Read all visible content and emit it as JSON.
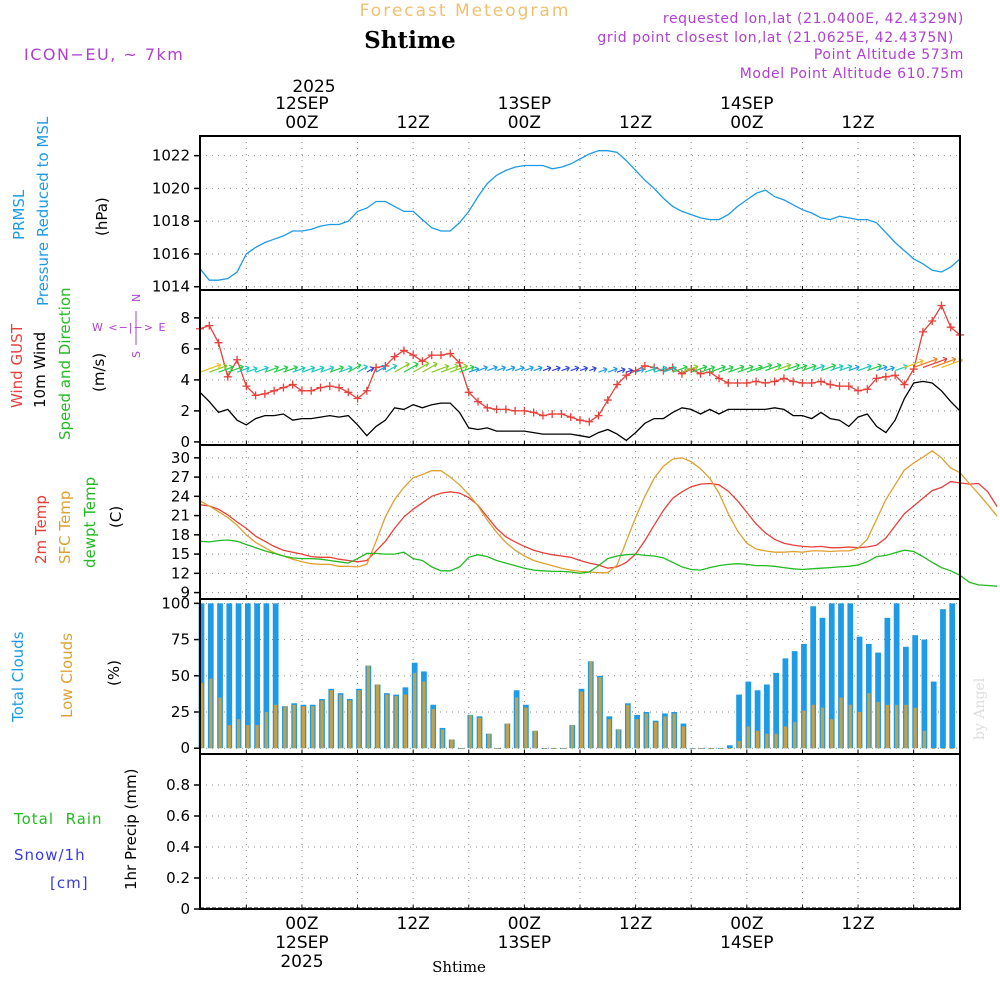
{
  "header": {
    "forecast_title": "Forecast Meteogram",
    "location": "Shtime",
    "model": "ICON−EU, ~ 7km",
    "requested": "requested lon,lat (21.0400E, 42.4329N)",
    "grid_point": "grid point closest lon,lat (21.0625E, 42.4375N)",
    "point_altitude": "Point Altitude 573m",
    "model_altitude": "Model Point Altitude 610.75m",
    "watermark": "by Angel"
  },
  "time_axis": {
    "top_year": "2025",
    "top_labels": [
      {
        "hour": 12,
        "line1": "12SEP",
        "line2": "00Z"
      },
      {
        "hour": 24,
        "line1": "",
        "line2": "12Z"
      },
      {
        "hour": 36,
        "line1": "13SEP",
        "line2": "00Z"
      },
      {
        "hour": 48,
        "line1": "",
        "line2": "12Z"
      },
      {
        "hour": 60,
        "line1": "14SEP",
        "line2": "00Z"
      },
      {
        "hour": 72,
        "line1": "",
        "line2": "12Z"
      }
    ],
    "bottom_labels": [
      {
        "hour": 12,
        "line1": "00Z",
        "line2": "12SEP",
        "line3": "2025"
      },
      {
        "hour": 24,
        "line1": "12Z",
        "line2": "",
        "line3": ""
      },
      {
        "hour": 36,
        "line1": "00Z",
        "line2": "13SEP",
        "line3": ""
      },
      {
        "hour": 48,
        "line1": "12Z",
        "line2": "",
        "line3": ""
      },
      {
        "hour": 60,
        "line1": "00Z",
        "line2": "14SEP",
        "line3": ""
      },
      {
        "hour": 72,
        "line1": "12Z",
        "line2": "",
        "line3": ""
      }
    ],
    "footer_label": "Shtime"
  },
  "panel_labels": {
    "pressure": {
      "line1": "PRMSL",
      "line2": "Pressure Reduced to MSL",
      "unit": "(hPa)"
    },
    "wind": {
      "gust": "Wind GUST",
      "wind10": "10m Wind",
      "dir": "Speed and Direction",
      "unit": "(m/s)",
      "compass_w": "W <−|−> E",
      "compass_n": "N",
      "compass_s": "S"
    },
    "temp": {
      "t2m": "2m Temp",
      "sfc": "SFC Temp",
      "dew": "dewpt Temp",
      "unit": "(C)"
    },
    "clouds": {
      "total": "Total Clouds",
      "low": "Low Clouds",
      "unit": "(%)"
    },
    "precip": {
      "rain": "Total  Rain",
      "snow": "Snow/1h",
      "snow_unit": "[cm]",
      "axis": "1hr Precip (mm)"
    }
  },
  "colors": {
    "pressure": "#1e9be6",
    "gust": "#e8403a",
    "wind": "#000000",
    "t2m": "#e8403a",
    "sfc": "#e0a030",
    "dew": "#22bb22",
    "total_cloud": "#1e9be6",
    "low_cloud": "#c8a040",
    "purple": "#b040d0",
    "orange_title": "#f0c070",
    "rain_label": "#22bb22",
    "snow_label": "#3b3bdb"
  },
  "chart_data": [
    {
      "type": "line",
      "title": "PRMSL Pressure Reduced to MSL",
      "ylabel": "hPa",
      "x_hours_start": 1,
      "ylim": [
        1013.8,
        1023.2
      ],
      "yticks": [
        1014,
        1016,
        1018,
        1020,
        1022
      ],
      "series": [
        {
          "name": "PRMSL",
          "values": [
            1015.1,
            1014.4,
            1014.4,
            1014.5,
            1014.9,
            1016.0,
            1016.4,
            1016.7,
            1016.9,
            1017.1,
            1017.4,
            1017.4,
            1017.5,
            1017.7,
            1017.8,
            1017.8,
            1018.0,
            1018.6,
            1018.8,
            1019.2,
            1019.2,
            1018.9,
            1018.6,
            1018.6,
            1018.1,
            1017.6,
            1017.4,
            1017.4,
            1017.9,
            1018.6,
            1019.5,
            1020.3,
            1020.8,
            1021.1,
            1021.3,
            1021.4,
            1021.4,
            1021.4,
            1021.2,
            1021.3,
            1021.5,
            1021.8,
            1022.1,
            1022.3,
            1022.3,
            1022.2,
            1021.7,
            1021.1,
            1020.5,
            1020.0,
            1019.4,
            1018.9,
            1018.6,
            1018.4,
            1018.2,
            1018.1,
            1018.1,
            1018.4,
            1018.9,
            1019.3,
            1019.7,
            1019.9,
            1019.5,
            1019.3,
            1019.0,
            1018.7,
            1018.5,
            1018.2,
            1018.1,
            1018.3,
            1018.2,
            1018.1,
            1018.1,
            1017.9,
            1017.3,
            1016.7,
            1016.2,
            1015.7,
            1015.4,
            1015.0,
            1014.9,
            1015.2,
            1015.7
          ]
        }
      ]
    },
    {
      "type": "line",
      "title": "Wind GUST / 10m Wind",
      "ylabel": "m/s",
      "x_hours_start": 1,
      "ylim": [
        -0.2,
        9.8
      ],
      "yticks": [
        0,
        2,
        4,
        6,
        8
      ],
      "series": [
        {
          "name": "Wind GUST",
          "values": [
            7.3,
            7.5,
            6.4,
            4.2,
            5.3,
            3.6,
            3.0,
            3.1,
            3.3,
            3.5,
            3.7,
            3.3,
            3.3,
            3.5,
            3.6,
            3.5,
            3.2,
            2.8,
            3.3,
            4.8,
            4.9,
            5.5,
            5.9,
            5.6,
            5.2,
            5.6,
            5.6,
            5.7,
            5.1,
            3.2,
            2.6,
            2.2,
            2.1,
            2.1,
            2.0,
            2.0,
            1.9,
            1.7,
            1.8,
            1.8,
            1.6,
            1.4,
            1.3,
            1.7,
            2.7,
            3.7,
            4.3,
            4.6,
            4.9,
            4.8,
            4.6,
            4.8,
            4.4,
            4.7,
            4.4,
            4.5,
            4.1,
            3.8,
            3.8,
            3.8,
            3.9,
            3.8,
            3.9,
            4.1,
            3.9,
            3.8,
            3.8,
            3.9,
            3.7,
            3.6,
            3.6,
            3.3,
            3.4,
            4.1,
            4.2,
            4.3,
            3.7,
            4.7,
            7.1,
            7.8,
            8.8,
            7.4,
            6.9
          ]
        },
        {
          "name": "10m Wind",
          "values": [
            3.2,
            2.6,
            1.9,
            2.1,
            1.4,
            1.1,
            1.5,
            1.7,
            1.7,
            1.8,
            1.4,
            1.5,
            1.5,
            1.6,
            1.7,
            1.6,
            1.7,
            1.1,
            0.4,
            1.0,
            1.4,
            2.2,
            2.1,
            2.4,
            2.2,
            2.4,
            2.5,
            2.5,
            1.9,
            0.9,
            0.8,
            0.9,
            0.7,
            0.7,
            0.7,
            0.7,
            0.6,
            0.5,
            0.5,
            0.5,
            0.5,
            0.4,
            0.3,
            0.6,
            0.8,
            0.5,
            0.1,
            0.6,
            1.2,
            1.5,
            1.5,
            1.9,
            2.2,
            2.1,
            1.8,
            2.1,
            1.8,
            2.1,
            2.1,
            2.1,
            2.1,
            2.1,
            2.2,
            2.1,
            1.7,
            1.7,
            1.5,
            1.9,
            1.5,
            1.4,
            1.0,
            1.6,
            1.8,
            1.0,
            0.6,
            1.4,
            2.8,
            3.8,
            3.9,
            3.8,
            3.3,
            2.6,
            2.0
          ]
        }
      ]
    },
    {
      "type": "line",
      "title": "2m Temp / SFC Temp / dewpt Temp",
      "ylabel": "C",
      "x_hours_start": 1,
      "ylim": [
        8.0,
        32.0
      ],
      "yticks": [
        9,
        12,
        15,
        18,
        21,
        24,
        27,
        30
      ],
      "series": [
        {
          "name": "2m Temp",
          "values": [
            22.7,
            22.5,
            22.0,
            21.1,
            20.0,
            19.0,
            17.8,
            17.0,
            16.2,
            15.6,
            15.3,
            15.0,
            14.6,
            14.5,
            14.5,
            14.2,
            14.0,
            13.8,
            14.0,
            15.5,
            17.0,
            19.0,
            20.8,
            22.0,
            23.0,
            24.0,
            24.5,
            24.7,
            24.5,
            23.8,
            22.6,
            20.8,
            19.0,
            17.7,
            16.9,
            16.2,
            15.6,
            15.2,
            14.9,
            14.7,
            14.5,
            14.0,
            13.6,
            13.3,
            12.8,
            13.0,
            13.7,
            15.0,
            17.1,
            19.5,
            21.8,
            23.7,
            24.7,
            25.5,
            25.9,
            26.0,
            25.8,
            24.8,
            23.3,
            21.5,
            19.7,
            18.3,
            17.3,
            16.7,
            16.4,
            16.2,
            16.1,
            16.2,
            16.0,
            16.0,
            16.1,
            16.0,
            16.1,
            16.4,
            17.5,
            19.4,
            21.3,
            22.5,
            23.7,
            24.9,
            25.4,
            26.3,
            26.1,
            25.9,
            26.0,
            24.7,
            22.4
          ]
        },
        {
          "name": "SFC Temp",
          "values": [
            23.3,
            22.5,
            21.6,
            20.7,
            19.5,
            18.0,
            16.8,
            16.0,
            15.2,
            14.7,
            14.2,
            13.8,
            13.5,
            13.4,
            13.4,
            13.1,
            13.1,
            13.0,
            13.4,
            17.0,
            20.8,
            23.5,
            25.4,
            26.9,
            27.4,
            28.0,
            28.0,
            27.0,
            25.8,
            24.3,
            22.5,
            20.3,
            18.4,
            16.8,
            15.6,
            14.7,
            14.0,
            13.6,
            13.2,
            12.8,
            12.5,
            12.3,
            12.2,
            12.1,
            12.1,
            13.3,
            17.0,
            20.7,
            24.0,
            26.8,
            28.7,
            29.8,
            30.0,
            29.4,
            28.3,
            26.8,
            24.5,
            21.3,
            18.6,
            16.7,
            15.8,
            15.5,
            15.3,
            15.3,
            15.4,
            15.3,
            15.5,
            15.5,
            15.4,
            15.5,
            15.5,
            15.9,
            17.3,
            20.4,
            23.5,
            25.8,
            28.1,
            29.2,
            30.1,
            31.1,
            30.0,
            28.4,
            27.7,
            26.0,
            24.4,
            22.7,
            20.9
          ]
        },
        {
          "name": "dewpt Temp",
          "values": [
            17.0,
            16.9,
            17.1,
            17.2,
            17.0,
            16.5,
            16.0,
            15.5,
            15.1,
            14.7,
            14.4,
            14.3,
            14.3,
            14.2,
            14.0,
            13.8,
            13.6,
            14.3,
            15.1,
            15.1,
            15.0,
            15.0,
            15.3,
            14.3,
            14.0,
            13.0,
            12.4,
            12.4,
            13.0,
            14.5,
            14.9,
            14.6,
            14.0,
            13.6,
            13.2,
            12.8,
            12.5,
            12.4,
            12.3,
            12.3,
            12.2,
            12.0,
            12.2,
            13.2,
            14.3,
            14.7,
            14.9,
            15.0,
            14.8,
            14.7,
            14.4,
            13.7,
            13.0,
            12.6,
            12.5,
            12.9,
            13.2,
            13.4,
            13.5,
            13.4,
            13.2,
            13.2,
            13.1,
            12.9,
            12.7,
            12.6,
            12.7,
            12.8,
            12.9,
            13.0,
            13.1,
            13.3,
            13.8,
            14.6,
            14.8,
            15.2,
            15.6,
            15.4,
            14.6,
            13.7,
            12.9,
            12.4,
            11.7,
            10.6,
            10.2,
            10.1,
            10.0
          ]
        }
      ]
    },
    {
      "type": "bar",
      "title": "Total Clouds / Low Clouds",
      "ylabel": "%",
      "x_hours_start": 1,
      "ylim": [
        -4,
        103
      ],
      "yticks": [
        0,
        25,
        50,
        75,
        100
      ],
      "series": [
        {
          "name": "Total Clouds",
          "values": [
            100,
            100,
            100,
            100,
            100,
            100,
            100,
            100,
            100,
            29,
            31,
            30,
            30,
            34,
            41,
            38,
            34,
            41,
            57,
            44,
            38,
            37,
            42,
            59,
            53,
            30,
            14,
            6,
            0,
            23,
            22,
            10,
            0,
            17,
            40,
            30,
            12,
            0,
            0,
            0,
            16,
            41,
            60,
            50,
            22,
            13,
            31,
            23,
            25,
            19,
            24,
            25,
            17,
            0,
            0,
            0,
            0,
            2,
            37,
            46,
            40,
            44,
            52,
            62,
            67,
            72,
            98,
            90,
            100,
            100,
            100,
            77,
            72,
            66,
            90,
            100,
            70,
            78,
            75,
            46,
            96,
            100
          ]
        },
        {
          "name": "Low Clouds",
          "values": [
            45,
            48,
            35,
            16,
            20,
            16,
            16,
            25,
            30,
            29,
            30,
            29,
            29,
            33,
            40,
            37,
            33,
            40,
            57,
            44,
            37,
            36,
            37,
            52,
            46,
            27,
            13,
            6,
            0,
            23,
            21,
            10,
            0,
            17,
            35,
            28,
            12,
            0,
            0,
            0,
            16,
            39,
            60,
            49,
            20,
            13,
            30,
            20,
            24,
            18,
            22,
            24,
            15,
            0,
            0,
            0,
            0,
            0,
            5,
            15,
            12,
            10,
            10,
            15,
            18,
            26,
            30,
            28,
            20,
            35,
            30,
            25,
            38,
            32,
            30,
            30,
            30,
            28,
            12,
            0,
            0,
            0
          ]
        }
      ]
    },
    {
      "type": "bar",
      "title": "1hr Precip (mm)",
      "ylabel": "1hr Precip (mm)",
      "x_hours_start": 1,
      "ylim": [
        0,
        1
      ],
      "yticks": [
        0,
        0.2,
        0.4,
        0.6,
        0.8
      ],
      "series": [
        {
          "name": "Total Rain",
          "values": [
            0,
            0,
            0,
            0,
            0,
            0,
            0,
            0,
            0,
            0,
            0,
            0,
            0,
            0,
            0,
            0,
            0,
            0,
            0,
            0,
            0,
            0,
            0,
            0,
            0,
            0,
            0,
            0,
            0,
            0,
            0,
            0,
            0,
            0,
            0,
            0,
            0,
            0,
            0,
            0,
            0,
            0,
            0,
            0,
            0,
            0,
            0,
            0,
            0,
            0,
            0,
            0,
            0,
            0,
            0,
            0,
            0,
            0,
            0,
            0,
            0,
            0,
            0,
            0,
            0,
            0,
            0,
            0,
            0,
            0,
            0,
            0,
            0,
            0,
            0,
            0,
            0,
            0,
            0,
            0,
            0,
            0
          ]
        },
        {
          "name": "Snow/1h",
          "values": [
            0,
            0,
            0,
            0,
            0,
            0,
            0,
            0,
            0,
            0,
            0,
            0,
            0,
            0,
            0,
            0,
            0,
            0,
            0,
            0,
            0,
            0,
            0,
            0,
            0,
            0,
            0,
            0,
            0,
            0,
            0,
            0,
            0,
            0,
            0,
            0,
            0,
            0,
            0,
            0,
            0,
            0,
            0,
            0,
            0,
            0,
            0,
            0,
            0,
            0,
            0,
            0,
            0,
            0,
            0,
            0,
            0,
            0,
            0,
            0,
            0,
            0,
            0,
            0,
            0,
            0,
            0,
            0,
            0,
            0,
            0,
            0,
            0,
            0,
            0,
            0,
            0,
            0,
            0,
            0,
            0,
            0
          ]
        }
      ]
    }
  ]
}
